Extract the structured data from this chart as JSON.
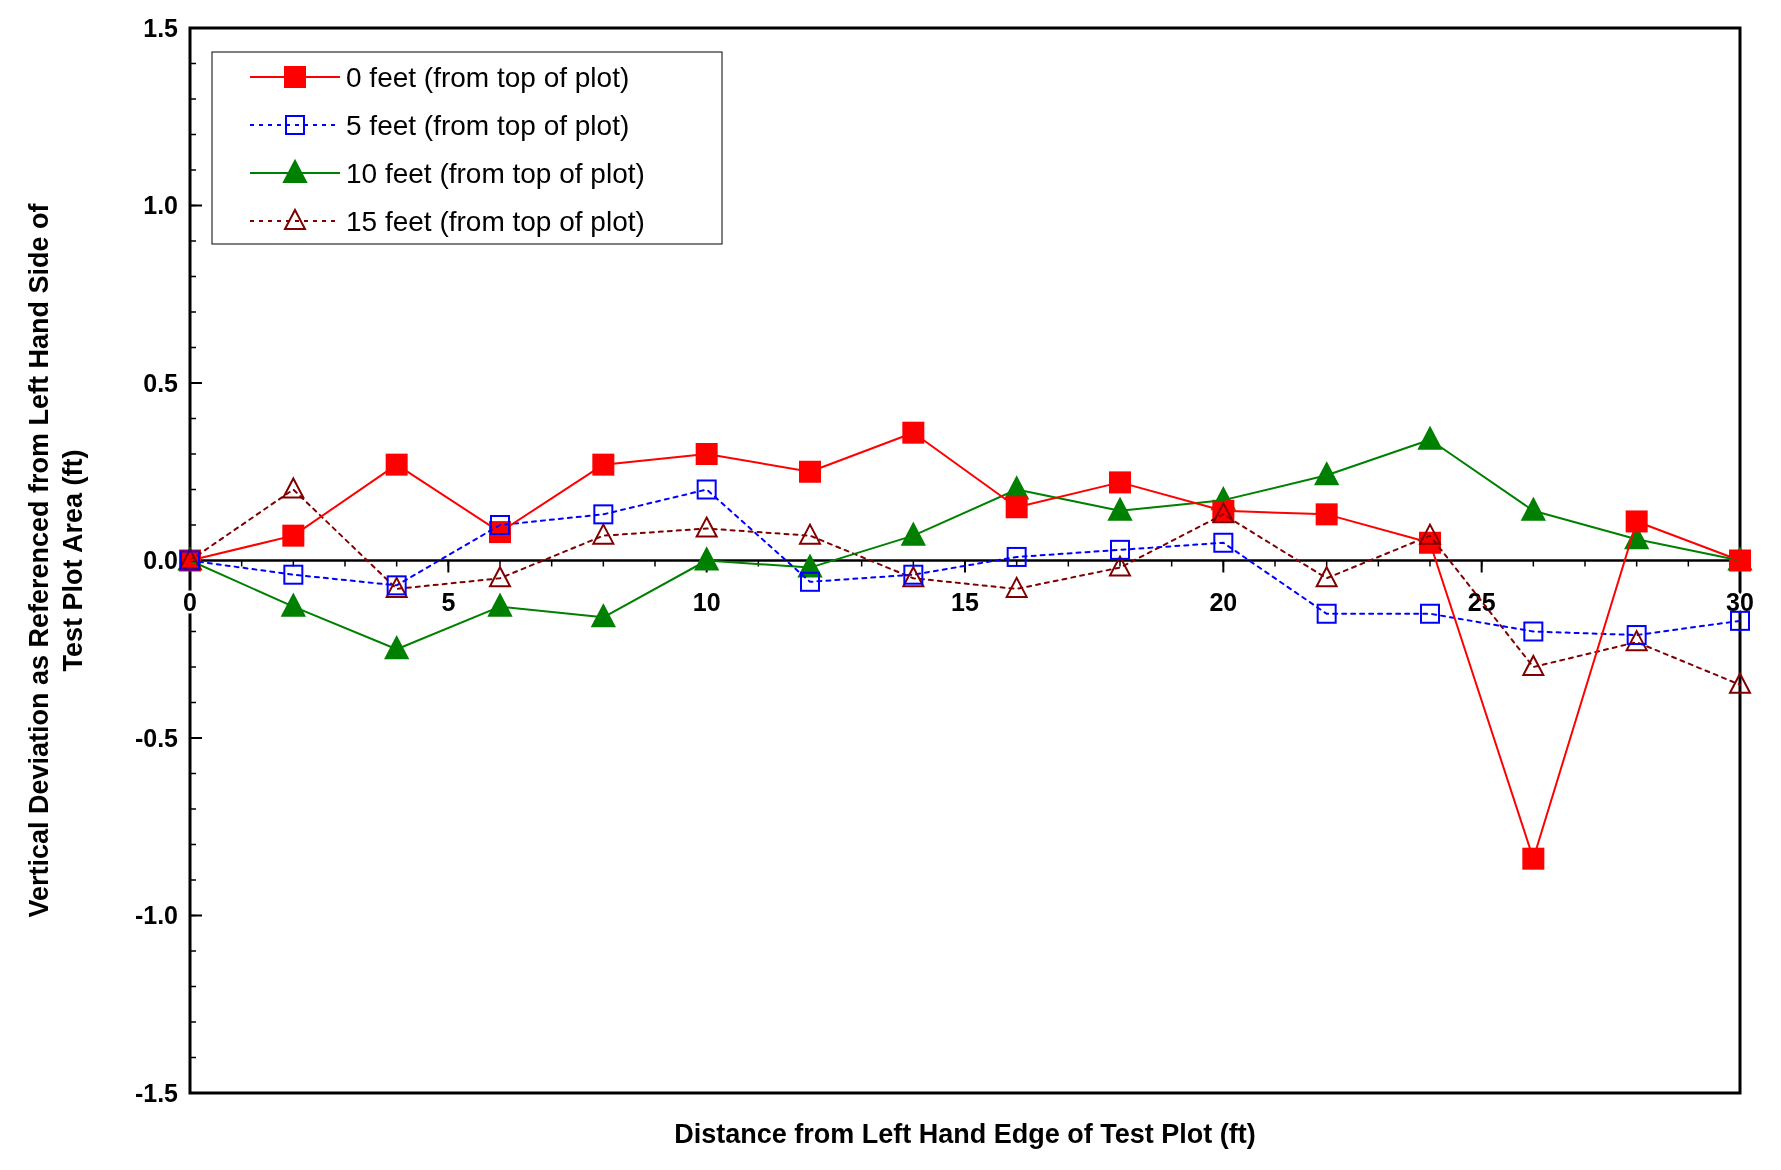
{
  "chart_data": {
    "type": "line",
    "xlabel": "Distance from Left Hand Edge of Test Plot (ft)",
    "ylabel": "Vertical Deviation as Referenced from Left Hand Side of Test Plot Area (ft)",
    "x": [
      0,
      2,
      4,
      6,
      8,
      10,
      12,
      14,
      16,
      18,
      20,
      22,
      24,
      26,
      28,
      30
    ],
    "xlim": [
      0,
      30
    ],
    "xticks": [
      0,
      5,
      10,
      15,
      20,
      25,
      30
    ],
    "ylim": [
      -1.5,
      1.5
    ],
    "yticks": [
      {
        "value": -1.5,
        "label": "-1.5"
      },
      {
        "value": -1,
        "label": "-1.0"
      },
      {
        "value": -0.5,
        "label": "-0.5"
      },
      {
        "value": 0,
        "label": "0.0"
      },
      {
        "value": 0.5,
        "label": "0.5"
      },
      {
        "value": 1,
        "label": "1.0"
      },
      {
        "value": 1.5,
        "label": "1.5"
      }
    ],
    "grid": false,
    "legend": "top left",
    "series": [
      {
        "name": "0 feet (from top of plot)",
        "color": "#ff0000",
        "marker": "square",
        "line_style": "solid",
        "values": [
          0,
          0.07,
          0.27,
          0.08,
          0.27,
          0.3,
          0.25,
          0.36,
          0.15,
          0.22,
          0.14,
          0.13,
          0.05,
          -0.84,
          0.11,
          0
        ]
      },
      {
        "name": "5 feet (from top of plot)",
        "color": "#0000ff",
        "marker": "square",
        "line_style": "dotted",
        "values": [
          0,
          -0.04,
          -0.07,
          0.1,
          0.13,
          0.2,
          -0.06,
          -0.04,
          0.01,
          0.03,
          0.05,
          -0.15,
          -0.15,
          -0.2,
          -0.21,
          -0.17
        ]
      },
      {
        "name": "10 feet (from top of plot)",
        "color": "#008000",
        "marker": "triangle",
        "line_style": "solid",
        "values": [
          0,
          -0.13,
          -0.25,
          -0.13,
          -0.16,
          0,
          -0.02,
          0.07,
          0.2,
          0.14,
          0.17,
          0.24,
          0.34,
          0.14,
          0.06,
          0
        ]
      },
      {
        "name": "15 feet (from top of plot)",
        "color": "#800000",
        "marker": "triangle",
        "line_style": "dotted",
        "values": [
          0,
          0.2,
          -0.08,
          -0.05,
          0.07,
          0.09,
          0.07,
          -0.05,
          -0.08,
          -0.02,
          0.13,
          -0.05,
          0.07,
          -0.3,
          -0.23,
          -0.35
        ]
      }
    ]
  }
}
